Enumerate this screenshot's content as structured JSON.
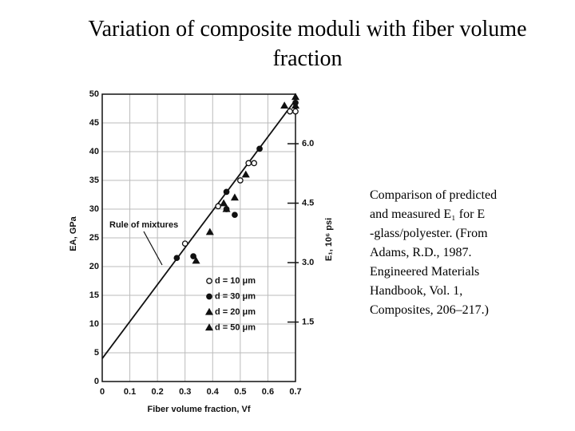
{
  "chart_data": {
    "type": "scatter",
    "title": "Variation of composite moduli with fiber volume fraction",
    "x_label": "Fiber volume fraction, Vf",
    "y_label": "EA, GPa",
    "y2_label": "E₁, 10⁶ psi",
    "xlim": [
      0,
      0.7
    ],
    "xticks": [
      0,
      0.1,
      0.2,
      0.3,
      0.4,
      0.5,
      0.6,
      0.7
    ],
    "ylim": [
      0,
      50
    ],
    "yticks": [
      0,
      5,
      10,
      15,
      20,
      25,
      30,
      35,
      40,
      45,
      50
    ],
    "y2lim": [
      0,
      7.25
    ],
    "y2ticks": [
      1.5,
      {
        "value": 3,
        "label": "3.0"
      },
      4.5,
      {
        "value": 6,
        "label": "6.0"
      }
    ],
    "grid": true,
    "series": [
      {
        "name": "d = 10 μm",
        "marker": "circle-open",
        "color": "#111111",
        "x": [
          0.3,
          0.42,
          0.45,
          0.5,
          0.53,
          0.55,
          0.68,
          0.7
        ],
        "values": [
          24,
          30.5,
          30,
          35,
          38,
          38,
          47,
          47
        ]
      },
      {
        "name": "d = 30 μm",
        "marker": "circle",
        "color": "#111111",
        "x": [
          0.27,
          0.33,
          0.45,
          0.48,
          0.57,
          0.7
        ],
        "values": [
          21.5,
          21.8,
          33,
          29,
          40.5,
          48.5
        ]
      },
      {
        "name": "d = 20 μm",
        "marker": "triangle",
        "color": "#111111",
        "x": [
          0.44,
          0.48,
          0.52,
          0.7
        ],
        "values": [
          31,
          32,
          36,
          49.5
        ]
      },
      {
        "name": "d = 50 μm",
        "marker": "triangle",
        "color": "#111111",
        "x": [
          0.34,
          0.39,
          0.45,
          0.66,
          0.7
        ],
        "values": [
          21,
          26,
          30,
          48,
          48
        ]
      }
    ],
    "lines": [
      {
        "name": "Rule of mixtures",
        "color": "#111111",
        "x": [
          0,
          0.7
        ],
        "values": [
          4,
          49
        ]
      }
    ],
    "caption": [
      "Comparison of predicted",
      "and measured E₁ for E",
      "-glass/polyester. (From",
      "Adams, R.D., 1987.",
      "Engineered Materials",
      "Handbook, Vol. 1,",
      "Composites, 206–217.)"
    ]
  }
}
